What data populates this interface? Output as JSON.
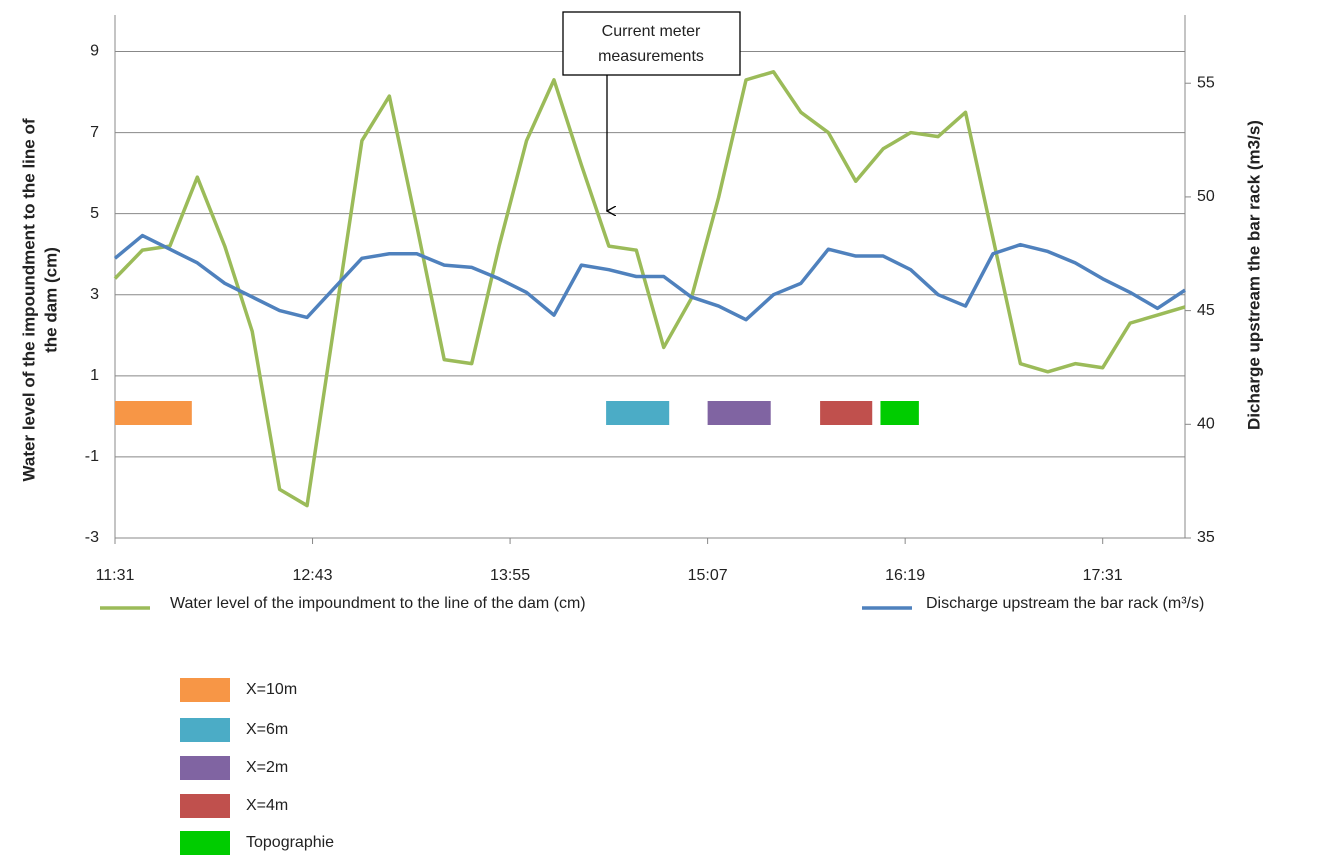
{
  "chart_data": {
    "type": "line",
    "x": [
      691,
      701,
      711,
      721,
      731,
      741,
      751,
      761,
      771,
      781,
      791,
      801,
      811,
      821,
      831,
      841,
      851,
      861,
      871,
      881,
      891,
      901,
      911,
      921,
      931,
      941,
      951,
      961,
      971,
      981,
      991,
      1001,
      1011,
      1021,
      1031,
      1041,
      1051,
      1061,
      1071,
      1081
    ],
    "xlim": [
      691,
      1081
    ],
    "xticks": [
      {
        "value": 691,
        "label": "11:31"
      },
      {
        "value": 763,
        "label": "12:43"
      },
      {
        "value": 835,
        "label": "13:55"
      },
      {
        "value": 907,
        "label": "15:07"
      },
      {
        "value": 979,
        "label": "16:19"
      },
      {
        "value": 1051,
        "label": "17:31"
      }
    ],
    "ylim": [
      -3,
      9.9
    ],
    "yticks": [
      -3,
      -1,
      1,
      3,
      5,
      7,
      9
    ],
    "y2lim": [
      35,
      58
    ],
    "y2ticks": [
      35,
      40,
      45,
      50,
      55
    ],
    "ylabel": [
      "Water level of the impoundment to the line of",
      "the dam  (cm)"
    ],
    "y2label": "Dicharge upstream the bar rack (m3/s)",
    "grid": true,
    "series": [
      {
        "name": "Water level of the impoundment to the line of the dam (cm)",
        "color": "#9bbb59",
        "values": [
          3.4,
          4.1,
          4.2,
          5.9,
          4.2,
          2.1,
          -1.8,
          -2.2,
          2.3,
          6.8,
          7.9,
          4.7,
          1.4,
          1.3,
          4.2,
          6.8,
          8.3,
          6.2,
          4.2,
          4.1,
          1.7,
          2.9,
          5.4,
          8.3,
          8.5,
          7.5,
          7.0,
          5.8,
          6.6,
          7.0,
          6.9,
          7.5,
          4.4,
          1.3,
          1.1,
          1.3,
          1.2,
          2.3,
          2.5,
          2.7
        ]
      },
      {
        "name": "Discharge upstream the bar rack (m³/s)",
        "color": "#4f81bd",
        "axis": "y2",
        "values": [
          47.3,
          48.3,
          47.7,
          47.1,
          46.2,
          45.6,
          45.0,
          44.7,
          46.0,
          47.3,
          47.5,
          47.5,
          47.0,
          46.9,
          46.4,
          45.8,
          44.8,
          47.0,
          46.8,
          46.5,
          46.5,
          45.6,
          45.2,
          44.6,
          45.7,
          46.2,
          47.7,
          47.4,
          47.4,
          46.8,
          45.7,
          45.2,
          47.5,
          47.9,
          47.6,
          47.1,
          46.4,
          45.8,
          45.1,
          45.9
        ]
      }
    ],
    "periods": [
      {
        "name": "X=10m",
        "color": "#f79646",
        "start": 691,
        "end": 719
      },
      {
        "name": "X=6m",
        "color": "#4bacc6",
        "start": 870,
        "end": 893
      },
      {
        "name": "X=2m",
        "color": "#8064a2",
        "start": 907,
        "end": 930
      },
      {
        "name": "X=4m",
        "color": "#c0504d",
        "start": 948,
        "end": 967
      },
      {
        "name": "Topographie",
        "color": "#00cc00",
        "start": 970,
        "end": 984
      }
    ],
    "annotation": [
      "Current meter",
      "measurements"
    ]
  }
}
